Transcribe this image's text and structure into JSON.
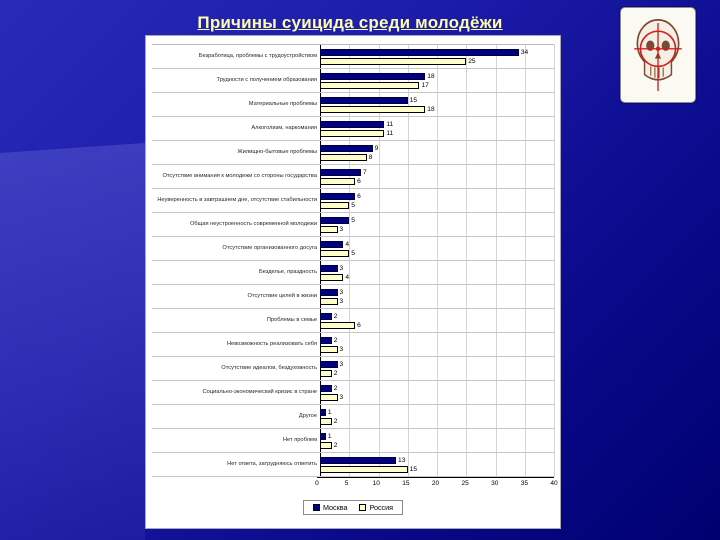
{
  "slide": {
    "title": "Причины суицида среди молодёжи"
  },
  "images": {
    "skull_target": "skull-with-red-crosshair-target"
  },
  "chart_data": {
    "type": "bar",
    "orientation": "horizontal",
    "title": "",
    "xlabel": "",
    "ylabel": "",
    "xlim": [
      0,
      40
    ],
    "x_ticks": [
      0,
      5,
      10,
      15,
      20,
      25,
      30,
      35,
      40
    ],
    "grid": true,
    "legend_position": "bottom",
    "categories": [
      "Безработица, проблемы с трудоустройством",
      "Трудности с получением образования",
      "Материальные проблемы",
      "Алкоголизм, наркомания",
      "Жилищно-бытовые проблемы",
      "Отсутствие внимания к молодежи со стороны государства",
      "Неуверенность в завтрашнем дне, отсутствие стабильности",
      "Общая неустроенность современной молодежи",
      "Отсутствие организованного досуга",
      "Безделье, праздность",
      "Отсутствие целей в жизни",
      "Проблемы в семье",
      "Невозможность реализовать себя",
      "Отсутствие идеалов, бездуховность",
      "Социально-экономический кризис в стране",
      "Другое",
      "Нет проблем",
      "Нет ответа, затрудняюсь ответить"
    ],
    "series": [
      {
        "name": "Москва",
        "color": "#000080",
        "values": [
          34,
          18,
          15,
          11,
          9,
          7,
          6,
          5,
          4,
          3,
          3,
          2,
          2,
          3,
          2,
          1,
          1,
          13
        ]
      },
      {
        "name": "Россия",
        "color": "#ffffcc",
        "values": [
          25,
          17,
          18,
          11,
          8,
          6,
          5,
          3,
          5,
          4,
          3,
          6,
          3,
          2,
          3,
          2,
          2,
          15
        ]
      }
    ]
  }
}
